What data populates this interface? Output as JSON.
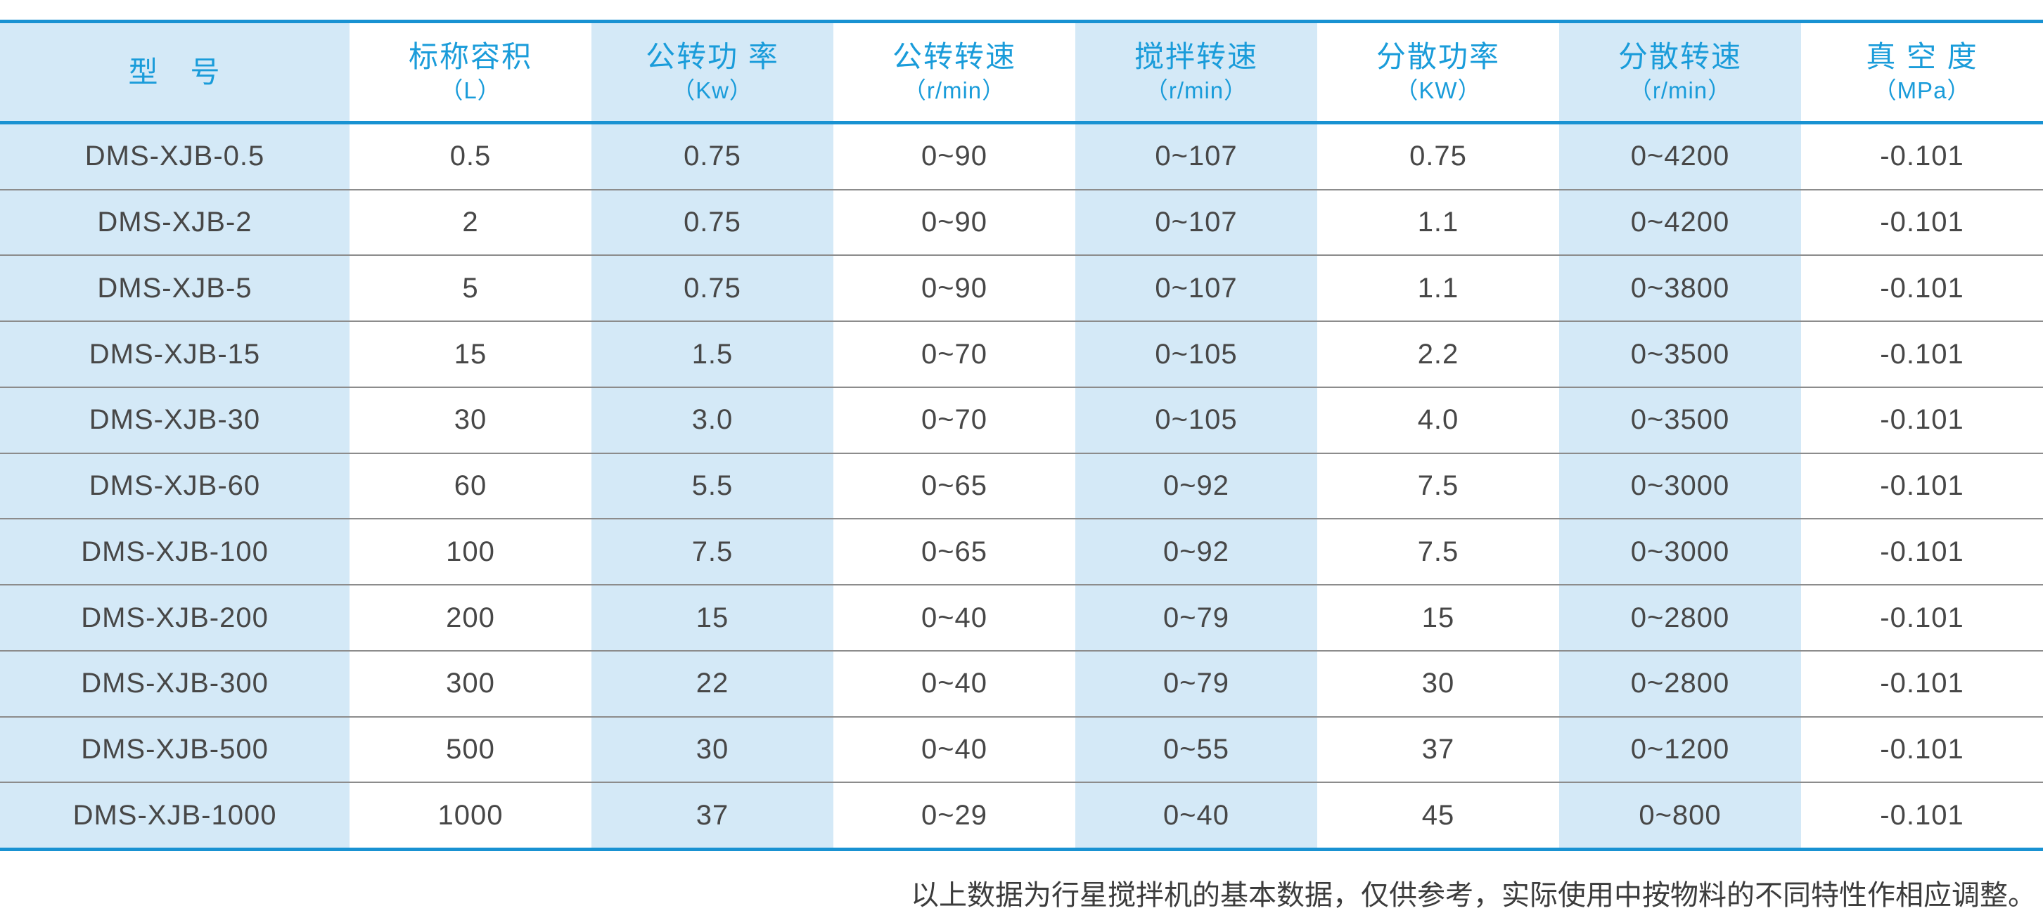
{
  "colors": {
    "accent_blue": "#1992d2",
    "header_text_blue": "#1a9cda",
    "stripe_light_blue": "#d4e9f7",
    "row_separator_gray": "#8c8c8c",
    "body_text_gray": "#474747"
  },
  "table": {
    "columns": [
      {
        "title": "型　号",
        "unit": ""
      },
      {
        "title": "标称容积",
        "unit": "（L）"
      },
      {
        "title": "公转功 率",
        "unit": "（Kw）"
      },
      {
        "title": "公转转速",
        "unit": "（r/min）"
      },
      {
        "title": "搅拌转速",
        "unit": "（r/min）"
      },
      {
        "title": "分散功率",
        "unit": "（KW）"
      },
      {
        "title": "分散转速",
        "unit": "（r/min）"
      },
      {
        "title": "真 空 度",
        "unit": "（MPa）"
      }
    ],
    "rows": [
      [
        "DMS-XJB-0.5",
        "0.5",
        "0.75",
        "0~90",
        "0~107",
        "0.75",
        "0~4200",
        "-0.101"
      ],
      [
        "DMS-XJB-2",
        "2",
        "0.75",
        "0~90",
        "0~107",
        "1.1",
        "0~4200",
        "-0.101"
      ],
      [
        "DMS-XJB-5",
        "5",
        "0.75",
        "0~90",
        "0~107",
        "1.1",
        "0~3800",
        "-0.101"
      ],
      [
        "DMS-XJB-15",
        "15",
        "1.5",
        "0~70",
        "0~105",
        "2.2",
        "0~3500",
        "-0.101"
      ],
      [
        "DMS-XJB-30",
        "30",
        "3.0",
        "0~70",
        "0~105",
        "4.0",
        "0~3500",
        "-0.101"
      ],
      [
        "DMS-XJB-60",
        "60",
        "5.5",
        "0~65",
        "0~92",
        "7.5",
        "0~3000",
        "-0.101"
      ],
      [
        "DMS-XJB-100",
        "100",
        "7.5",
        "0~65",
        "0~92",
        "7.5",
        "0~3000",
        "-0.101"
      ],
      [
        "DMS-XJB-200",
        "200",
        "15",
        "0~40",
        "0~79",
        "15",
        "0~2800",
        "-0.101"
      ],
      [
        "DMS-XJB-300",
        "300",
        "22",
        "0~40",
        "0~79",
        "30",
        "0~2800",
        "-0.101"
      ],
      [
        "DMS-XJB-500",
        "500",
        "30",
        "0~40",
        "0~55",
        "37",
        "0~1200",
        "-0.101"
      ],
      [
        "DMS-XJB-1000",
        "1000",
        "37",
        "0~29",
        "0~40",
        "45",
        "0~800",
        "-0.101"
      ]
    ]
  },
  "footer": {
    "note": "以上数据为行星搅拌机的基本数据，仅供参考，实际使用中按物料的不同特性作相应调整。"
  }
}
